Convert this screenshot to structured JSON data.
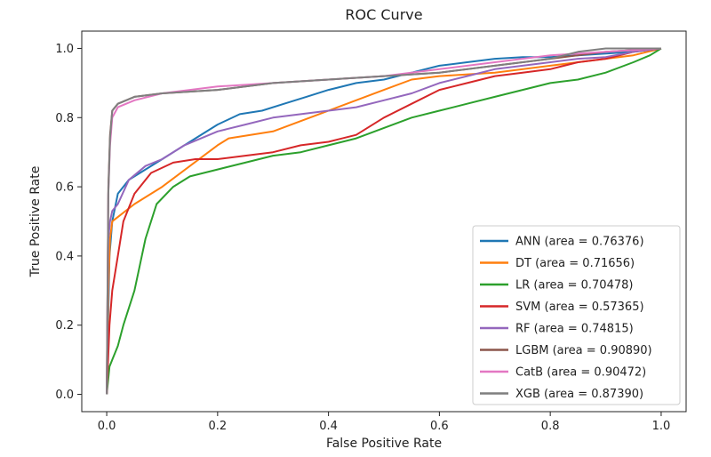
{
  "chart_data": {
    "type": "line",
    "title": "ROC Curve",
    "xlabel": "False Positive Rate",
    "ylabel": "True Positive Rate",
    "xlim": [
      -0.045,
      1.045
    ],
    "ylim": [
      -0.05,
      1.05
    ],
    "xticks": [
      "0.0",
      "0.2",
      "0.4",
      "0.6",
      "0.8",
      "1.0"
    ],
    "yticks": [
      "0.0",
      "0.2",
      "0.4",
      "0.6",
      "0.8",
      "1.0"
    ],
    "grid": false,
    "legend_position": "lower-right",
    "series": [
      {
        "name": "ANN (area = 0.76376)",
        "color": "#1f77b4",
        "x": [
          0,
          0.005,
          0.01,
          0.02,
          0.04,
          0.07,
          0.1,
          0.13,
          0.16,
          0.2,
          0.24,
          0.28,
          0.32,
          0.36,
          0.4,
          0.45,
          0.5,
          0.55,
          0.6,
          0.65,
          0.7,
          0.75,
          0.8,
          0.85,
          0.9,
          0.95,
          1.0
        ],
        "y": [
          0,
          0.4,
          0.5,
          0.58,
          0.62,
          0.65,
          0.68,
          0.71,
          0.74,
          0.78,
          0.81,
          0.82,
          0.84,
          0.86,
          0.88,
          0.9,
          0.91,
          0.93,
          0.95,
          0.96,
          0.97,
          0.975,
          0.975,
          0.98,
          0.985,
          0.99,
          1.0
        ]
      },
      {
        "name": "DT (area = 0.71656)",
        "color": "#ff7f0e",
        "x": [
          0,
          0.003,
          0.006,
          0.01,
          0.05,
          0.1,
          0.15,
          0.2,
          0.22,
          0.3,
          0.4,
          0.5,
          0.55,
          0.6,
          0.7,
          0.8,
          0.9,
          0.95,
          1.0
        ],
        "y": [
          0,
          0.3,
          0.45,
          0.5,
          0.55,
          0.6,
          0.66,
          0.72,
          0.74,
          0.76,
          0.82,
          0.88,
          0.91,
          0.92,
          0.93,
          0.95,
          0.97,
          0.98,
          1.0
        ]
      },
      {
        "name": "LR (area = 0.70478)",
        "color": "#2ca02c",
        "x": [
          0,
          0.005,
          0.01,
          0.02,
          0.03,
          0.05,
          0.07,
          0.09,
          0.12,
          0.15,
          0.2,
          0.25,
          0.3,
          0.35,
          0.4,
          0.45,
          0.5,
          0.55,
          0.6,
          0.65,
          0.7,
          0.75,
          0.8,
          0.85,
          0.9,
          0.95,
          0.98,
          1.0
        ],
        "y": [
          0,
          0.08,
          0.1,
          0.14,
          0.2,
          0.3,
          0.45,
          0.55,
          0.6,
          0.63,
          0.65,
          0.67,
          0.69,
          0.7,
          0.72,
          0.74,
          0.77,
          0.8,
          0.82,
          0.84,
          0.86,
          0.88,
          0.9,
          0.91,
          0.93,
          0.96,
          0.98,
          1.0
        ]
      },
      {
        "name": "SVM (area = 0.57365)",
        "color": "#d62728",
        "x": [
          0,
          0.005,
          0.01,
          0.02,
          0.03,
          0.05,
          0.08,
          0.12,
          0.16,
          0.2,
          0.25,
          0.3,
          0.35,
          0.4,
          0.45,
          0.5,
          0.55,
          0.6,
          0.65,
          0.7,
          0.75,
          0.8,
          0.85,
          0.9,
          0.95,
          1.0
        ],
        "y": [
          0,
          0.2,
          0.3,
          0.4,
          0.5,
          0.58,
          0.64,
          0.67,
          0.68,
          0.68,
          0.69,
          0.7,
          0.72,
          0.73,
          0.75,
          0.8,
          0.84,
          0.88,
          0.9,
          0.92,
          0.93,
          0.94,
          0.96,
          0.97,
          0.99,
          1.0
        ]
      },
      {
        "name": "RF (area = 0.74815)",
        "color": "#9467bd",
        "x": [
          0,
          0.003,
          0.006,
          0.01,
          0.02,
          0.04,
          0.07,
          0.1,
          0.14,
          0.2,
          0.25,
          0.3,
          0.35,
          0.4,
          0.45,
          0.5,
          0.55,
          0.6,
          0.65,
          0.7,
          0.75,
          0.8,
          0.85,
          0.9,
          0.95,
          1.0
        ],
        "y": [
          0,
          0.45,
          0.5,
          0.53,
          0.55,
          0.62,
          0.66,
          0.68,
          0.72,
          0.76,
          0.78,
          0.8,
          0.81,
          0.82,
          0.83,
          0.85,
          0.87,
          0.9,
          0.92,
          0.94,
          0.95,
          0.96,
          0.97,
          0.975,
          0.99,
          1.0
        ]
      },
      {
        "name": "LGBM (area = 0.90890)",
        "color": "#8c564b",
        "x": [
          0,
          0.003,
          0.006,
          0.01,
          0.02,
          0.05,
          0.1,
          0.2,
          0.3,
          0.4,
          0.5,
          0.6,
          0.7,
          0.8,
          0.9,
          1.0
        ],
        "y": [
          0,
          0.6,
          0.75,
          0.82,
          0.84,
          0.86,
          0.87,
          0.88,
          0.9,
          0.91,
          0.92,
          0.93,
          0.95,
          0.97,
          0.99,
          1.0
        ]
      },
      {
        "name": "CatB (area = 0.90472)",
        "color": "#e377c2",
        "x": [
          0,
          0.003,
          0.006,
          0.01,
          0.02,
          0.05,
          0.1,
          0.2,
          0.3,
          0.4,
          0.5,
          0.6,
          0.7,
          0.8,
          0.9,
          1.0
        ],
        "y": [
          0,
          0.58,
          0.72,
          0.8,
          0.83,
          0.85,
          0.87,
          0.89,
          0.9,
          0.91,
          0.92,
          0.94,
          0.96,
          0.98,
          0.99,
          1.0
        ]
      },
      {
        "name": "XGB (area = 0.87390)",
        "color": "#7f7f7f",
        "x": [
          0,
          0.003,
          0.006,
          0.01,
          0.02,
          0.05,
          0.1,
          0.2,
          0.3,
          0.4,
          0.5,
          0.6,
          0.7,
          0.8,
          0.85,
          0.9,
          1.0
        ],
        "y": [
          0,
          0.58,
          0.74,
          0.82,
          0.84,
          0.86,
          0.87,
          0.88,
          0.9,
          0.91,
          0.92,
          0.93,
          0.95,
          0.97,
          0.99,
          1.0,
          1.0
        ]
      }
    ]
  }
}
